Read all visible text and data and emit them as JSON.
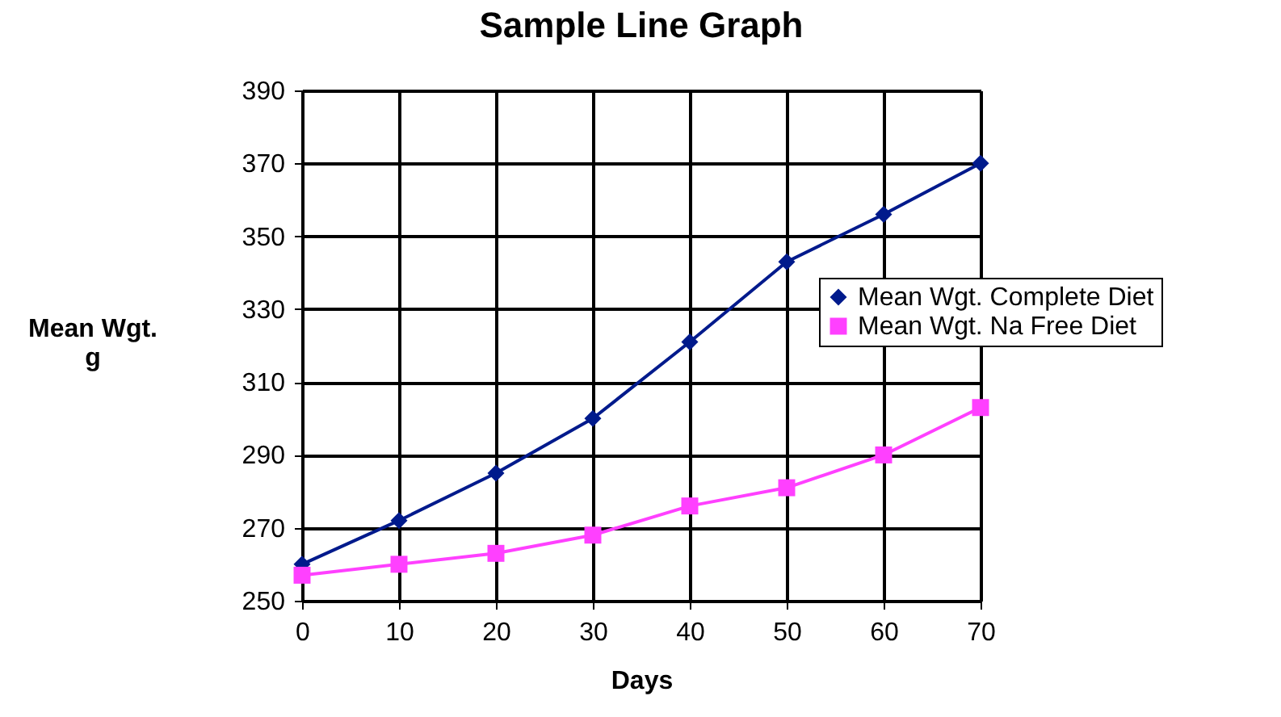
{
  "chart_data": {
    "type": "line",
    "title": "Sample Line Graph",
    "xlabel": "Days",
    "ylabel": "Mean   Wgt.\ng",
    "x": [
      0,
      10,
      20,
      30,
      40,
      50,
      60,
      70
    ],
    "series": [
      {
        "name": "Mean Wgt. Complete Diet",
        "color": "#001a8c",
        "marker": "diamond",
        "values": [
          260,
          272,
          285,
          300,
          321,
          343,
          356,
          370
        ]
      },
      {
        "name": "Mean Wgt. Na Free Diet",
        "color": "#ff40ff",
        "marker": "square",
        "values": [
          257,
          260,
          263,
          268,
          276,
          281,
          290,
          303
        ]
      }
    ],
    "xlim": [
      0,
      70
    ],
    "xticks": [
      0,
      10,
      20,
      30,
      40,
      50,
      60,
      70
    ],
    "ylim": [
      250,
      390
    ],
    "yticks": [
      250,
      270,
      290,
      310,
      330,
      350,
      370,
      390
    ],
    "grid": true,
    "legend": "right",
    "line_style": "solid"
  }
}
